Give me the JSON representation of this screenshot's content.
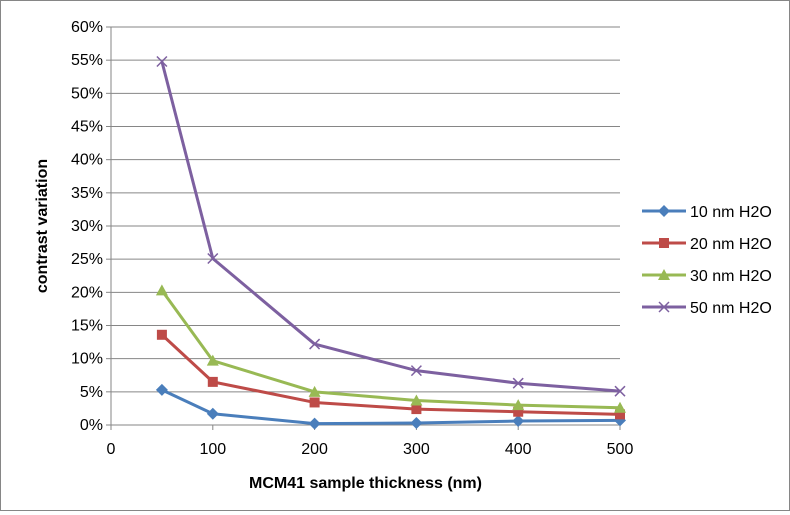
{
  "chart_data": {
    "type": "line",
    "title": "",
    "xlabel": "MCM41 sample thickness (nm)",
    "ylabel": "contrast variation",
    "xlim": [
      0,
      500
    ],
    "ylim": [
      0,
      60
    ],
    "x_ticks": [
      "0",
      "100",
      "200",
      "300",
      "400",
      "500"
    ],
    "y_ticks": [
      "0%",
      "5%",
      "10%",
      "15%",
      "20%",
      "25%",
      "30%",
      "35%",
      "40%",
      "45%",
      "50%",
      "55%",
      "60%"
    ],
    "grid": "horizontal major gridlines",
    "legend_position": "right",
    "series": [
      {
        "name": "10 nm H2O",
        "color": "#4A7EBB",
        "marker": "diamond",
        "x": [
          50,
          100,
          200,
          300,
          400,
          500
        ],
        "y": [
          5.3,
          1.7,
          0.2,
          0.3,
          0.6,
          0.7
        ]
      },
      {
        "name": "20 nm H2O",
        "color": "#BE4B48",
        "marker": "square",
        "x": [
          50,
          100,
          200,
          300,
          400,
          500
        ],
        "y": [
          13.6,
          6.5,
          3.4,
          2.4,
          2.0,
          1.6
        ]
      },
      {
        "name": "30 nm H2O",
        "color": "#98B954",
        "marker": "triangle",
        "x": [
          50,
          100,
          200,
          300,
          400,
          500
        ],
        "y": [
          20.3,
          9.7,
          5.0,
          3.7,
          3.0,
          2.6
        ]
      },
      {
        "name": "50 nm H2O",
        "color": "#7D60A0",
        "marker": "x",
        "x": [
          50,
          100,
          200,
          300,
          400,
          500
        ],
        "y": [
          54.8,
          25.1,
          12.2,
          8.2,
          6.3,
          5.1
        ]
      }
    ]
  }
}
